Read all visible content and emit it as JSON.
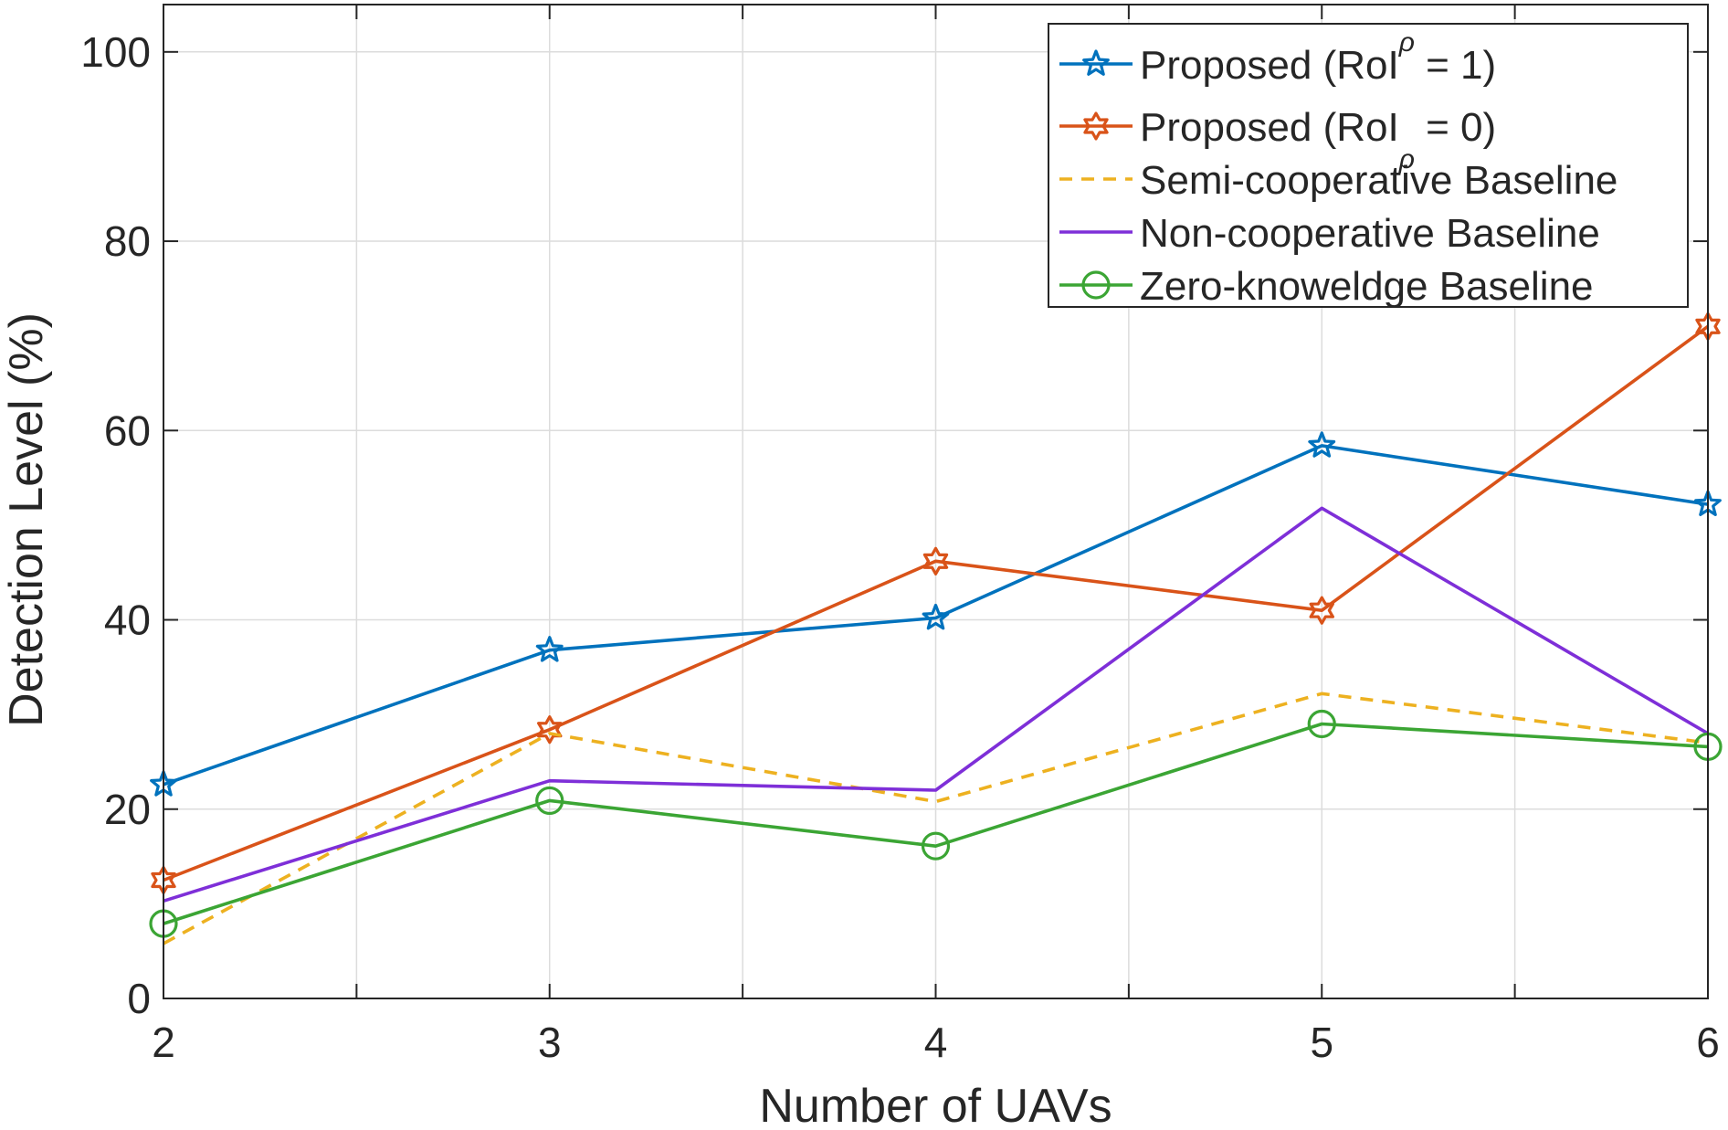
{
  "chart_data": {
    "type": "line",
    "title": "",
    "xlabel": "Number of UAVs",
    "ylabel": "Detection Level (%)",
    "xlim": [
      2,
      6
    ],
    "ylim": [
      0,
      105
    ],
    "x_ticks": [
      2,
      3,
      4,
      5,
      6
    ],
    "x_tick_labels": [
      "2",
      "3",
      "4",
      "5",
      "6"
    ],
    "x_grid": [
      2,
      2.5,
      3,
      3.5,
      4,
      4.5,
      5,
      5.5,
      6
    ],
    "y_ticks": [
      0,
      20,
      40,
      60,
      80,
      100
    ],
    "y_tick_labels": [
      "0",
      "20",
      "40",
      "60",
      "80",
      "100"
    ],
    "y_grid": [
      0,
      20,
      40,
      60,
      80,
      100
    ],
    "grid": true,
    "legend_position": "top-right",
    "x": [
      2,
      3,
      4,
      5,
      6
    ],
    "series": [
      {
        "name": "Proposed (RoI_ρ = 1)",
        "label_main": "Proposed (RoI",
        "label_sub": "ρ",
        "label_tail": " = 1)",
        "color": "#0072BD",
        "dash": "solid",
        "marker": "star-filled",
        "values": [
          22.6,
          36.8,
          40.2,
          58.4,
          52.2
        ]
      },
      {
        "name": "Proposed (RoI_ρ = 0)",
        "label_main": "Proposed (RoI",
        "label_sub": "ρ",
        "label_tail": " = 0)",
        "color": "#D95319",
        "dash": "solid",
        "marker": "hexagram",
        "values": [
          12.5,
          28.4,
          46.2,
          41.0,
          71.0
        ]
      },
      {
        "name": "Semi-cooperative Baseline",
        "label_main": "Semi-cooperative Baseline",
        "label_sub": "",
        "label_tail": "",
        "color": "#EDB120",
        "dash": "dashed",
        "marker": "none",
        "values": [
          5.8,
          28.0,
          20.8,
          32.2,
          27.0
        ]
      },
      {
        "name": "Non-cooperative Baseline",
        "label_main": "Non-cooperative Baseline",
        "label_sub": "",
        "label_tail": "",
        "color": "#7E2FD8",
        "dash": "solid",
        "marker": "none",
        "values": [
          10.3,
          23.0,
          22.0,
          51.8,
          28.0
        ]
      },
      {
        "name": "Zero-knoweldge Baseline",
        "label_main": "Zero-knoweldge Baseline",
        "label_sub": "",
        "label_tail": "",
        "color": "#3BA534",
        "dash": "solid",
        "marker": "circle",
        "values": [
          7.9,
          20.9,
          16.1,
          29.0,
          26.6
        ]
      }
    ]
  }
}
